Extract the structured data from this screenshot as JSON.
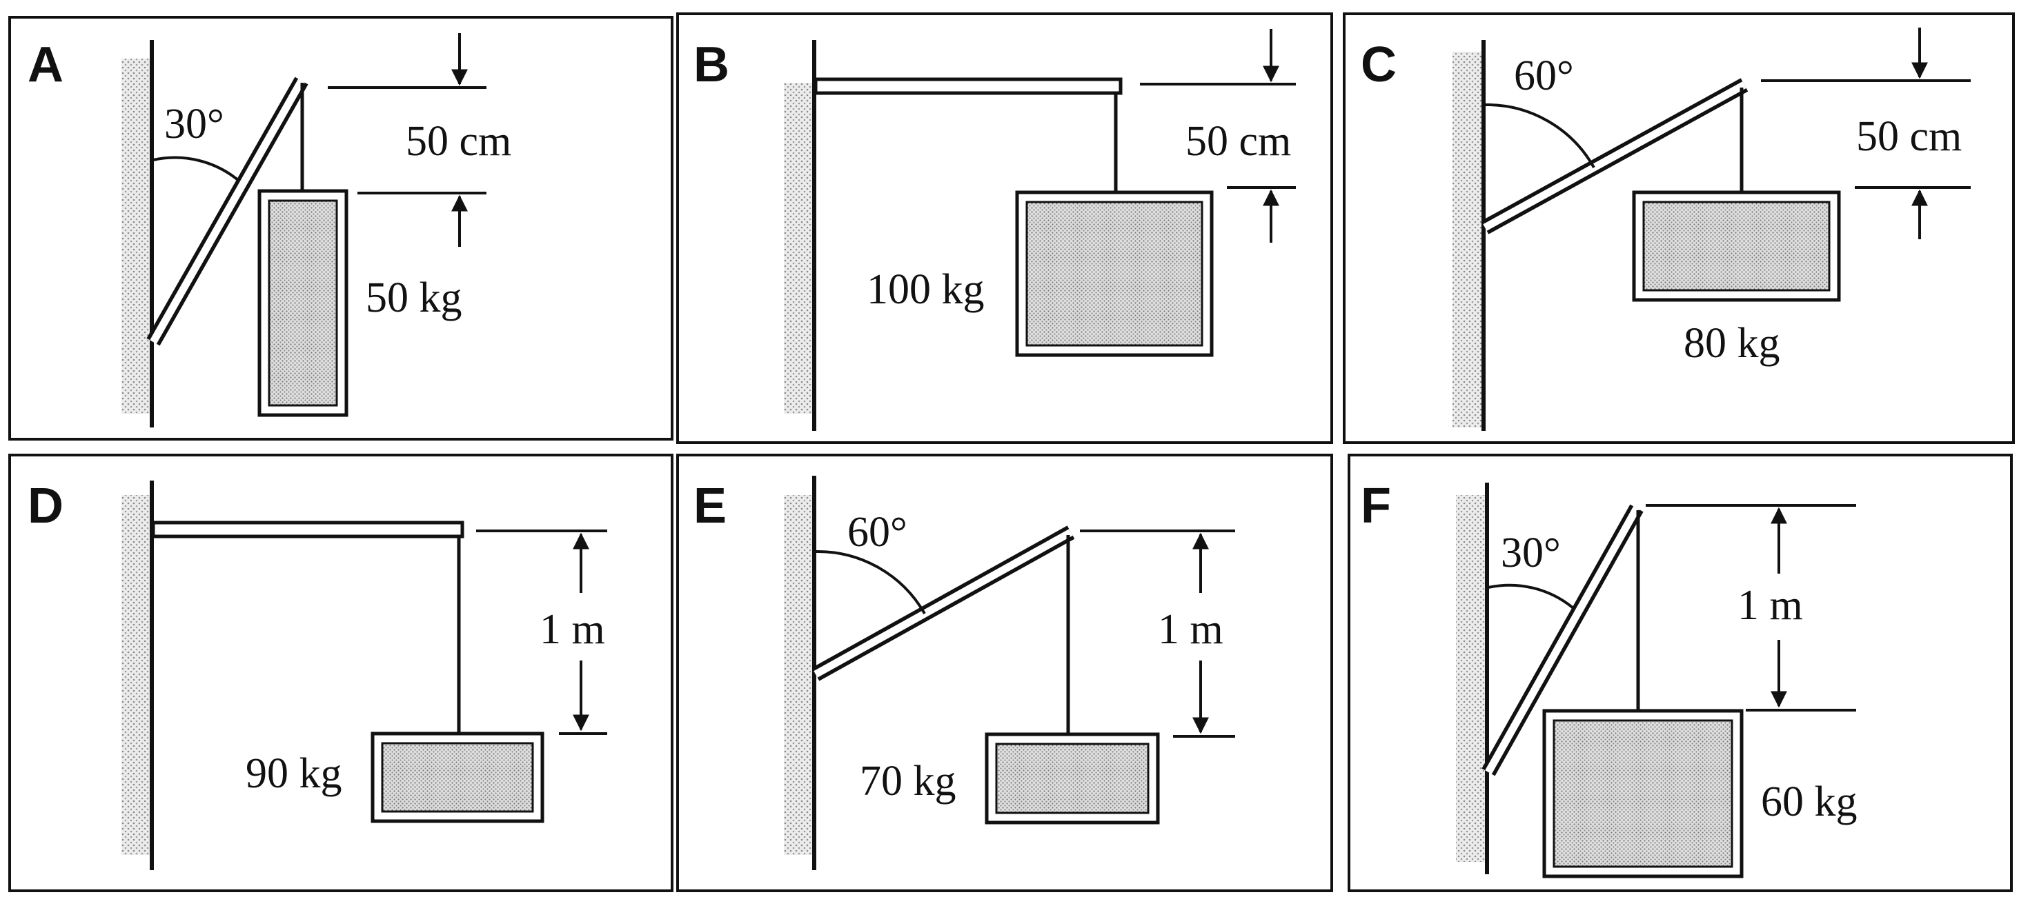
{
  "panels": [
    {
      "letter": "A",
      "angle": "30°",
      "distance": "50 cm",
      "mass": "50 kg"
    },
    {
      "letter": "B",
      "distance": "50 cm",
      "mass": "100 kg"
    },
    {
      "letter": "C",
      "angle": "60°",
      "distance": "50 cm",
      "mass": "80 kg"
    },
    {
      "letter": "D",
      "distance": "1 m",
      "mass": "90 kg"
    },
    {
      "letter": "E",
      "angle": "60°",
      "distance": "1 m",
      "mass": "70 kg"
    },
    {
      "letter": "F",
      "angle": "30°",
      "distance": "1 m",
      "mass": "60 kg"
    }
  ]
}
